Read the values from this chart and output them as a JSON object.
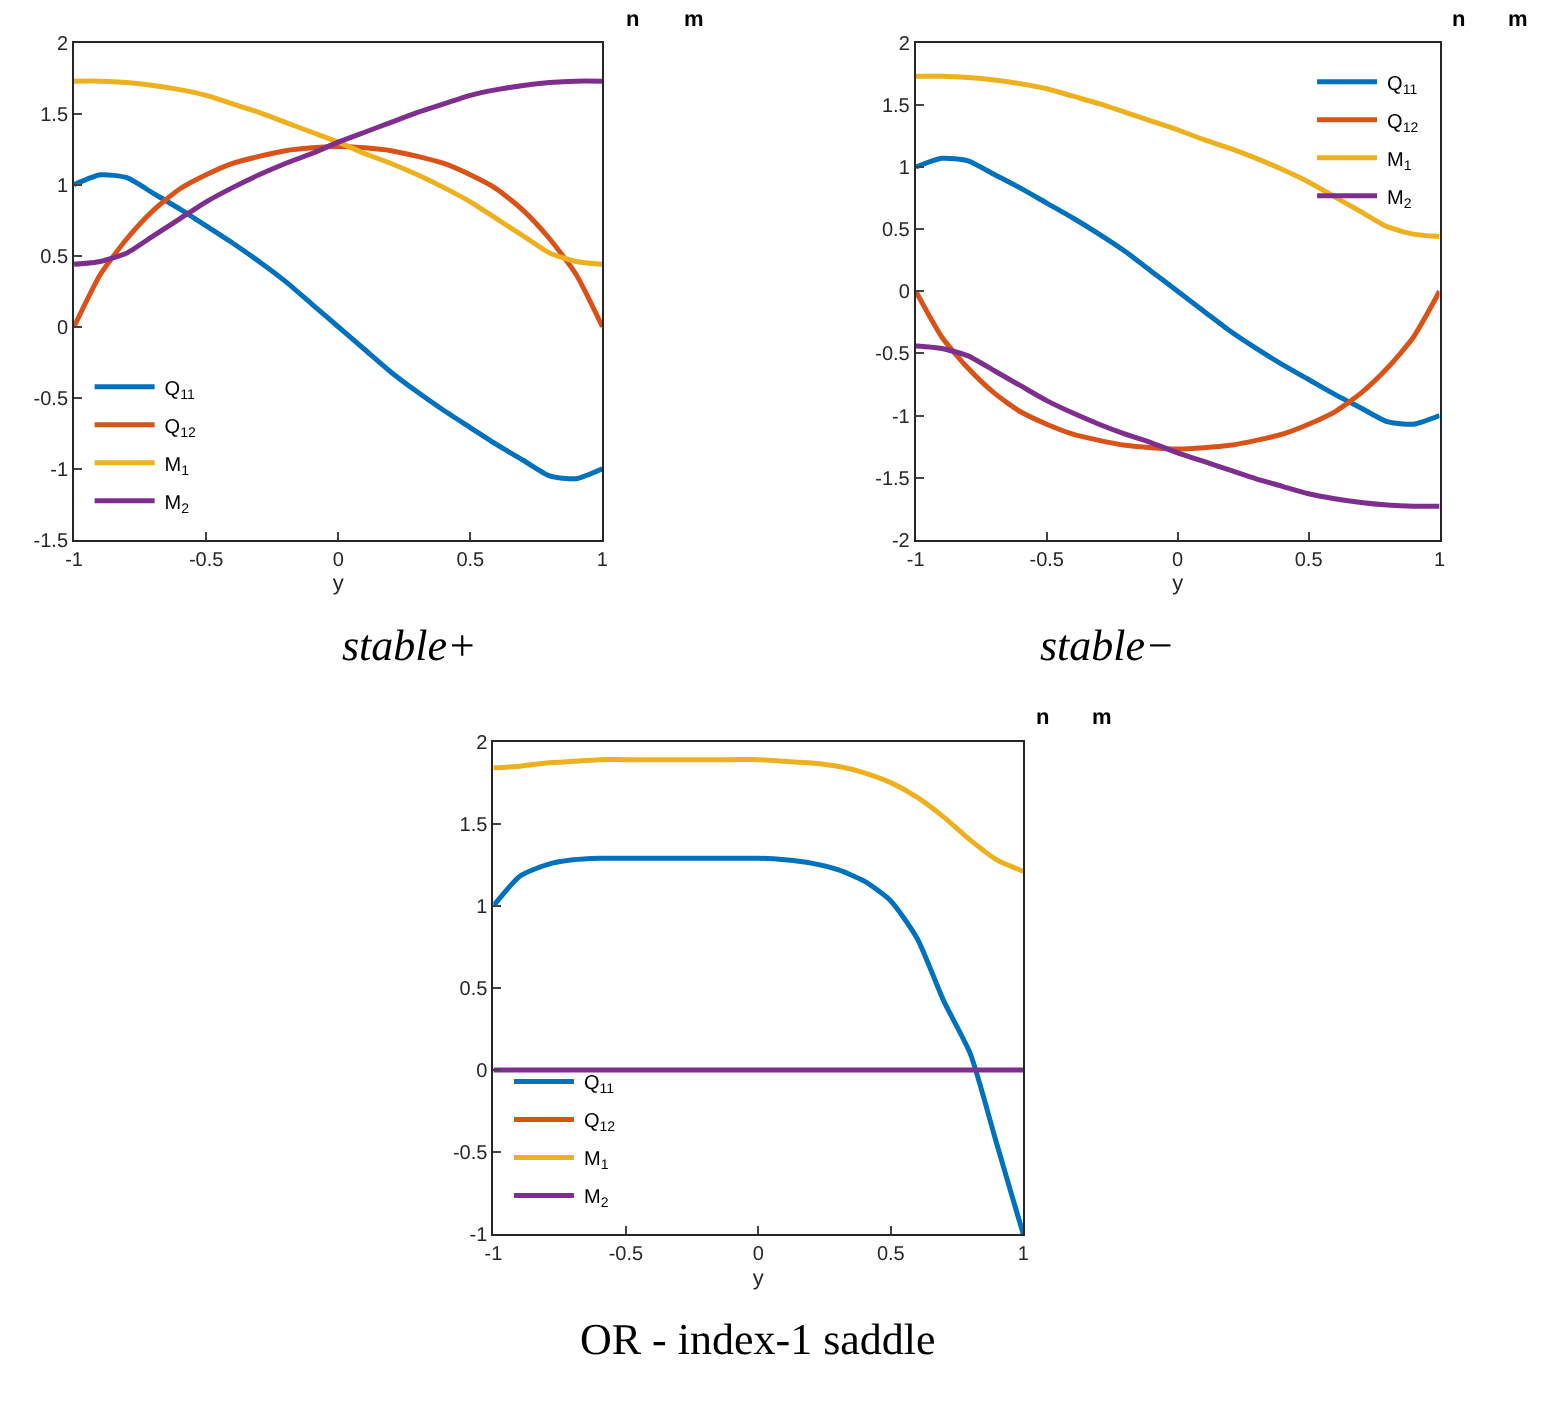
{
  "chart_data": [
    {
      "type": "line",
      "xlabel": "y",
      "annotations": [
        "stable+",
        "n",
        "m"
      ],
      "legend": "bottom left",
      "xlim": [
        -1,
        1
      ],
      "ylim": [
        -1.5,
        2
      ],
      "xticks": [
        -1,
        -0.5,
        0,
        0.5,
        1
      ],
      "yticks": [
        -1.5,
        -1,
        -0.5,
        0,
        0.5,
        1,
        1.5,
        2
      ],
      "x": [
        -1,
        -0.9,
        -0.8,
        -0.7,
        -0.6,
        -0.5,
        -0.4,
        -0.3,
        -0.2,
        -0.1,
        0,
        0.1,
        0.2,
        0.3,
        0.4,
        0.5,
        0.6,
        0.7,
        0.8,
        0.9,
        1
      ],
      "series": [
        {
          "name": "Q$_{11}$",
          "color": "#0072bd",
          "values": [
            1.0,
            1.07,
            1.05,
            0.94,
            0.83,
            0.71,
            0.59,
            0.46,
            0.32,
            0.16,
            0,
            -0.16,
            -0.32,
            -0.46,
            -0.59,
            -0.71,
            -0.83,
            -0.94,
            -1.05,
            -1.07,
            -1.0
          ]
        },
        {
          "name": "Q$_{12}$",
          "color": "#d95319",
          "values": [
            0,
            0.37,
            0.62,
            0.82,
            0.97,
            1.07,
            1.15,
            1.2,
            1.24,
            1.26,
            1.27,
            1.26,
            1.24,
            1.2,
            1.15,
            1.07,
            0.97,
            0.82,
            0.62,
            0.37,
            0
          ]
        },
        {
          "name": "M$_{1}$",
          "color": "#edb120",
          "values": [
            1.73,
            1.73,
            1.72,
            1.7,
            1.67,
            1.63,
            1.57,
            1.51,
            1.44,
            1.37,
            1.3,
            1.22,
            1.15,
            1.07,
            0.98,
            0.88,
            0.76,
            0.64,
            0.52,
            0.46,
            0.44
          ]
        },
        {
          "name": "M$_{2}$",
          "color": "#7e2f8e",
          "values": [
            0.44,
            0.46,
            0.52,
            0.64,
            0.76,
            0.88,
            0.98,
            1.07,
            1.15,
            1.22,
            1.3,
            1.37,
            1.44,
            1.51,
            1.57,
            1.63,
            1.67,
            1.7,
            1.72,
            1.73,
            1.73
          ]
        }
      ]
    },
    {
      "type": "line",
      "xlabel": "y",
      "annotations": [
        "stable−",
        "n",
        "m"
      ],
      "legend": "top right",
      "xlim": [
        -1,
        1
      ],
      "ylim": [
        -2,
        2
      ],
      "xticks": [
        -1,
        -0.5,
        0,
        0.5,
        1
      ],
      "yticks": [
        -2,
        -1.5,
        -1,
        -0.5,
        0,
        0.5,
        1,
        1.5,
        2
      ],
      "x": [
        -1,
        -0.9,
        -0.8,
        -0.7,
        -0.6,
        -0.5,
        -0.4,
        -0.3,
        -0.2,
        -0.1,
        0,
        0.1,
        0.2,
        0.3,
        0.4,
        0.5,
        0.6,
        0.7,
        0.8,
        0.9,
        1
      ],
      "series": [
        {
          "name": "Q$_{11}$",
          "color": "#0072bd",
          "values": [
            1.0,
            1.07,
            1.05,
            0.94,
            0.83,
            0.71,
            0.59,
            0.46,
            0.32,
            0.16,
            0,
            -0.16,
            -0.32,
            -0.46,
            -0.59,
            -0.71,
            -0.83,
            -0.94,
            -1.05,
            -1.07,
            -1.0
          ]
        },
        {
          "name": "Q$_{12}$",
          "color": "#d95319",
          "values": [
            0,
            -0.37,
            -0.62,
            -0.82,
            -0.97,
            -1.07,
            -1.15,
            -1.2,
            -1.24,
            -1.26,
            -1.27,
            -1.26,
            -1.24,
            -1.2,
            -1.15,
            -1.07,
            -0.97,
            -0.82,
            -0.62,
            -0.37,
            0
          ]
        },
        {
          "name": "M$_{1}$",
          "color": "#edb120",
          "values": [
            1.73,
            1.73,
            1.72,
            1.7,
            1.67,
            1.63,
            1.57,
            1.51,
            1.44,
            1.37,
            1.3,
            1.22,
            1.15,
            1.07,
            0.98,
            0.88,
            0.76,
            0.64,
            0.52,
            0.46,
            0.44
          ]
        },
        {
          "name": "M$_{2}$",
          "color": "#7e2f8e",
          "values": [
            -0.44,
            -0.46,
            -0.52,
            -0.64,
            -0.76,
            -0.88,
            -0.98,
            -1.07,
            -1.15,
            -1.22,
            -1.3,
            -1.37,
            -1.44,
            -1.51,
            -1.57,
            -1.63,
            -1.67,
            -1.7,
            -1.72,
            -1.73,
            -1.73
          ]
        }
      ]
    },
    {
      "type": "line",
      "xlabel": "y",
      "annotations": [
        "OR - index-1 saddle",
        "n",
        "m"
      ],
      "legend": "bottom left",
      "xlim": [
        -1,
        1
      ],
      "ylim": [
        -1,
        2
      ],
      "xticks": [
        -1,
        -0.5,
        0,
        0.5,
        1
      ],
      "yticks": [
        -1,
        -0.5,
        0,
        0.5,
        1,
        1.5,
        2
      ],
      "x": [
        -1,
        -0.9,
        -0.8,
        -0.7,
        -0.6,
        -0.5,
        -0.4,
        -0.3,
        -0.2,
        -0.1,
        0,
        0.1,
        0.2,
        0.3,
        0.4,
        0.5,
        0.6,
        0.7,
        0.8,
        0.9,
        1
      ],
      "series": [
        {
          "name": "Q$_{11}$",
          "color": "#0072bd",
          "values": [
            1.0,
            1.18,
            1.25,
            1.28,
            1.29,
            1.29,
            1.29,
            1.29,
            1.29,
            1.29,
            1.29,
            1.28,
            1.26,
            1.22,
            1.15,
            1.03,
            0.8,
            0.42,
            0.1,
            -0.45,
            -1.0
          ]
        },
        {
          "name": "Q$_{12}$",
          "color": "#d95319",
          "values": [
            null,
            null,
            null,
            null,
            null,
            null,
            null,
            null,
            null,
            null,
            null,
            null,
            null,
            null,
            null,
            null,
            null,
            null,
            null,
            null,
            null
          ]
        },
        {
          "name": "M$_{1}$",
          "color": "#edb120",
          "values": [
            1.84,
            1.85,
            1.87,
            1.88,
            1.89,
            1.89,
            1.89,
            1.89,
            1.89,
            1.89,
            1.89,
            1.88,
            1.87,
            1.85,
            1.81,
            1.75,
            1.66,
            1.54,
            1.4,
            1.28,
            1.21
          ]
        },
        {
          "name": "M$_{2}$",
          "color": "#7e2f8e",
          "values": [
            0,
            0,
            0,
            0,
            0,
            0,
            0,
            0,
            0,
            0,
            0,
            0,
            0,
            0,
            0,
            0,
            0,
            0,
            0,
            0,
            0
          ]
        }
      ]
    }
  ]
}
